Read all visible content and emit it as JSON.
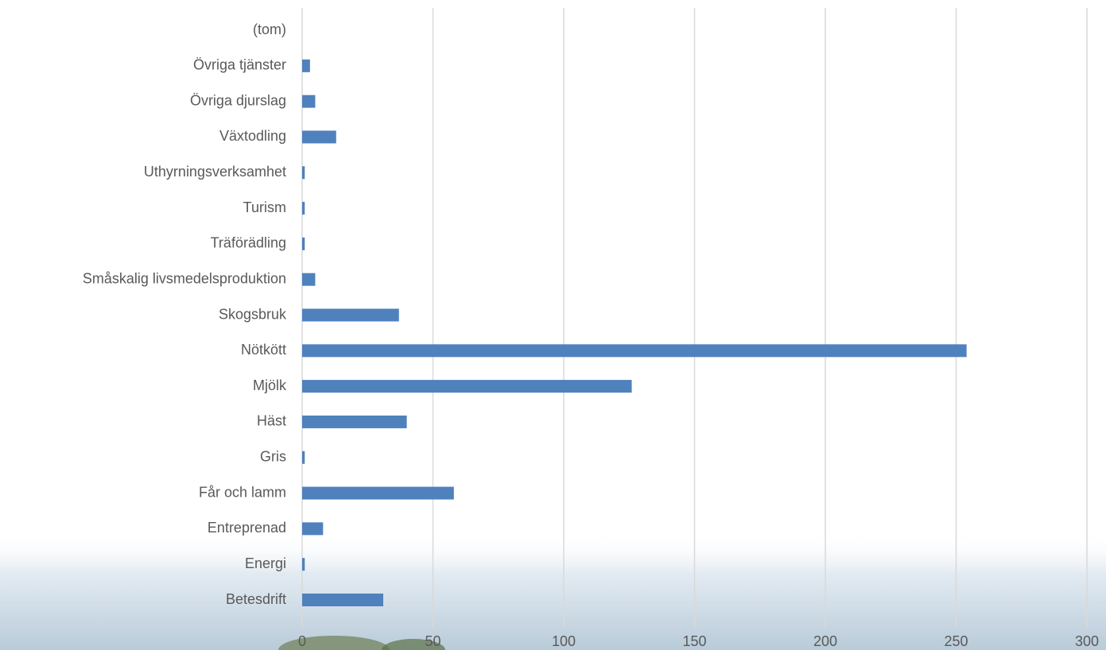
{
  "chart_data": {
    "type": "bar",
    "orientation": "horizontal",
    "categories": [
      "Betesdrift",
      "Energi",
      "Entreprenad",
      "Får och lamm",
      "Gris",
      "Häst",
      "Mjölk",
      "Nötkött",
      "Skogsbruk",
      "Småskalig livsmedelsproduktion",
      "Träförädling",
      "Turism",
      "Uthyrningsverksamhet",
      "Växtodling",
      "Övriga djurslag",
      "Övriga tjänster",
      "(tom)"
    ],
    "values": [
      31,
      1,
      8,
      58,
      1,
      40,
      126,
      254,
      37,
      5,
      1,
      1,
      1,
      13,
      5,
      3,
      null
    ],
    "color": "#4f81bd",
    "xlim": [
      0,
      300
    ],
    "xticks": [
      0,
      50,
      100,
      150,
      200,
      250,
      300
    ],
    "grid": true
  }
}
